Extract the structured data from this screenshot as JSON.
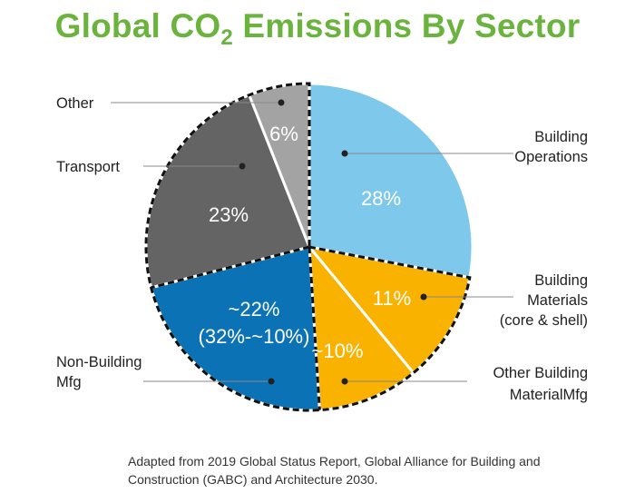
{
  "chart_data": {
    "type": "pie",
    "title_main": "Global CO",
    "title_sub": "2",
    "title_rest": " Emissions By Sector",
    "slices": [
      {
        "label_lines": [
          "Building",
          "Operations"
        ],
        "value": 28,
        "display": [
          "28%"
        ],
        "color": "#7ec8ec"
      },
      {
        "label_lines": [
          "Building",
          "Materials",
          "(core & shell)"
        ],
        "value": 11,
        "display": [
          "11%"
        ],
        "color": "#f9b200"
      },
      {
        "label_lines": [
          "Other Building",
          "MaterialMfg"
        ],
        "value": 10,
        "display": [
          "~10%"
        ],
        "color": "#f9b200"
      },
      {
        "label_lines": [
          "Non-Building",
          "Mfg"
        ],
        "value": 22,
        "display": [
          "~22%",
          "(32%-~10%)"
        ],
        "color": "#0b72b5"
      },
      {
        "label_lines": [
          "Transport"
        ],
        "value": 23,
        "display": [
          "23%"
        ],
        "color": "#646464"
      },
      {
        "label_lines": [
          "Other"
        ],
        "value": 6,
        "display": [
          "6%"
        ],
        "color": "#a3a3a3"
      }
    ]
  },
  "source_note": "Adapted from 2019 Global Status Report, Global Alliance for Building and Construction (GABC) and Architecture 2030."
}
